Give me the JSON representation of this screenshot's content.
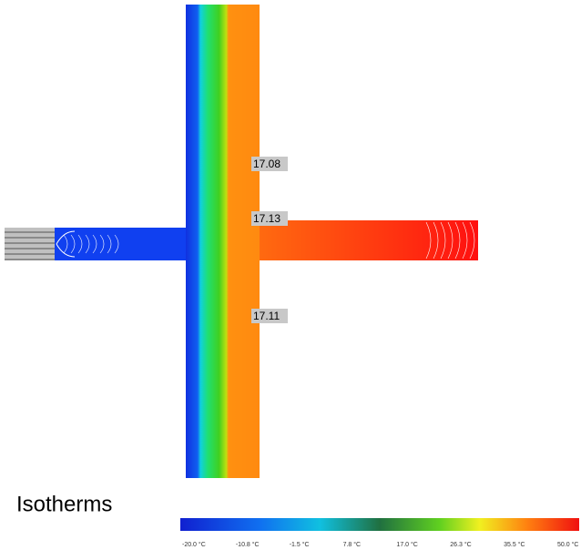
{
  "labels": [
    "17.08",
    "17.13",
    "17.11"
  ],
  "legend": {
    "title": "Isotherms",
    "ticks": [
      "-20.0 °C",
      "-10.8 °C",
      "-1.5 °C",
      "7.8 °C",
      "17.0 °C",
      "26.3 °C",
      "35.5 °C",
      "50.0 °C"
    ]
  }
}
